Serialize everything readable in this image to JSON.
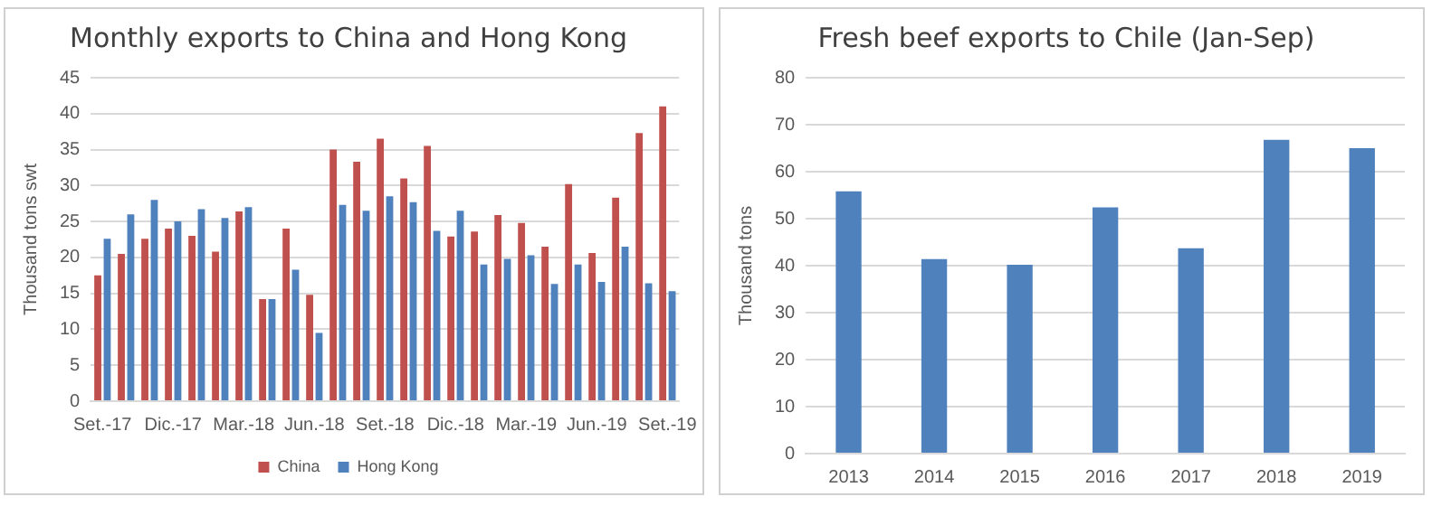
{
  "chart_data": [
    {
      "type": "bar",
      "title": "Monthly exports to China and Hong Kong",
      "ylabel": "Thousand tons swt",
      "categories": [
        "Set.-17",
        null,
        null,
        "Dic.-17",
        null,
        null,
        "Mar.-18",
        null,
        null,
        "Jun.-18",
        null,
        null,
        "Set.-18",
        null,
        null,
        "Dic.-18",
        null,
        null,
        "Mar.-19",
        null,
        null,
        "Jun.-19",
        null,
        null,
        "Set.-19"
      ],
      "series": [
        {
          "name": "China",
          "color": "#c0504d",
          "values": [
            17.5,
            20.5,
            22.6,
            24,
            23,
            20.8,
            26.4,
            14.2,
            24,
            14.8,
            35,
            33.3,
            36.5,
            31,
            35.5,
            22.9,
            23.6,
            25.9,
            24.8,
            21.5,
            30.2,
            20.6,
            28.3,
            37.3,
            41
          ]
        },
        {
          "name": "Hong Kong",
          "color": "#4f81bd",
          "values": [
            22.6,
            26,
            28,
            25,
            26.7,
            25.5,
            27,
            14.2,
            18.3,
            9.5,
            27.3,
            26.5,
            28.5,
            27.7,
            23.7,
            26.5,
            19,
            19.8,
            20.3,
            16.3,
            19,
            16.6,
            21.5,
            16.4,
            15.3
          ]
        }
      ],
      "ylim": [
        0,
        45
      ],
      "yticks": [
        0,
        5,
        10,
        15,
        20,
        25,
        30,
        35,
        40,
        45
      ],
      "grid": "y",
      "legend": "bottom"
    },
    {
      "type": "bar",
      "title": "Fresh beef exports to Chile (Jan-Sep)",
      "ylabel": "Thousand tons",
      "categories": [
        "2013",
        "2014",
        "2015",
        "2016",
        "2017",
        "2018",
        "2019"
      ],
      "values": [
        55.8,
        41.4,
        40.2,
        52.4,
        43.7,
        66.8,
        65
      ],
      "color": "#4f81bd",
      "ylim": [
        0,
        80
      ],
      "yticks": [
        0,
        10,
        20,
        30,
        40,
        50,
        60,
        70,
        80
      ],
      "grid": "y"
    }
  ]
}
